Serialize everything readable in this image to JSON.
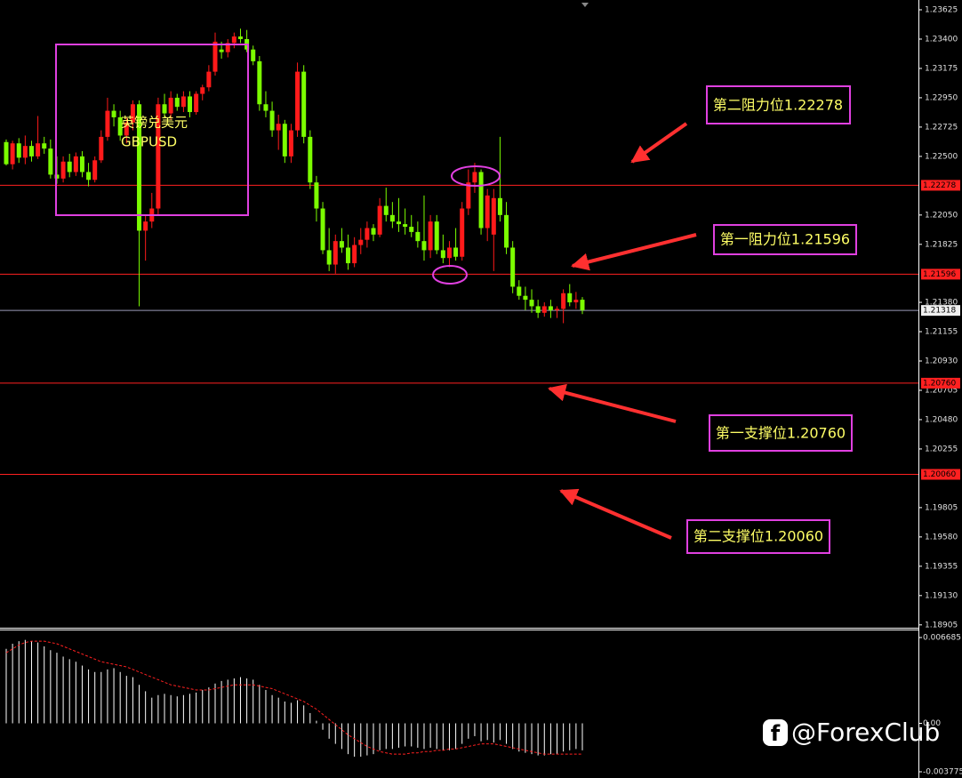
{
  "chart_data": {
    "type": "candlestick",
    "symbol_cn": "英镑兑美元",
    "symbol": "GBPUSD",
    "up_color": "#ff1a1a",
    "down_color": "#7cfc00",
    "ylim": [
      1.1889,
      1.237
    ],
    "yticks": [
      1.23625,
      {
        "value": 1.234,
        "label": "1.23400"
      },
      1.23175,
      {
        "value": 1.2295,
        "label": "1.22950"
      },
      1.22725,
      {
        "value": 1.225,
        "label": "1.22500"
      },
      {
        "value": 1.2205,
        "label": "1.22050"
      },
      1.21825,
      {
        "value": 1.2138,
        "label": "1.21380"
      },
      1.21155,
      {
        "value": 1.2093,
        "label": "1.20930"
      },
      1.20705,
      {
        "value": 1.2048,
        "label": "1.20480"
      },
      1.20255,
      1.19805,
      {
        "value": 1.1958,
        "label": "1.19580"
      },
      1.19355,
      {
        "value": 1.1913,
        "label": "1.19130"
      },
      1.18905
    ],
    "levels": [
      1.22278,
      1.21596,
      1.21318,
      {
        "value": 1.2076,
        "label": "1.20760"
      },
      {
        "value": 1.2006,
        "label": "1.20060"
      }
    ],
    "level_colors": [
      "#ff2020",
      "#ff2020",
      "#9a9ab8",
      "#ff2020",
      "#ff2020"
    ],
    "annotations": [
      "第二阻力位1.22278",
      "第一阻力位1.21596",
      "第一支撑位1.20760",
      "第二支撑位1.20060"
    ],
    "open": [
      1.2261,
      1.2244,
      1.226,
      1.2249,
      1.2258,
      1.225,
      1.226,
      1.2256,
      1.2236,
      1.2233,
      1.2246,
      1.2238,
      1.225,
      1.2238,
      1.2232,
      1.2247,
      1.2265,
      1.2285,
      1.228,
      1.2266,
      1.2276,
      1.229,
      1.2193,
      1.22,
      1.221,
      1.229,
      1.2283,
      1.2295,
      1.2288,
      1.2296,
      1.2284,
      1.2298,
      1.2303,
      1.2315,
      1.2332,
      1.233,
      1.2337,
      1.2342,
      1.234,
      1.2332,
      1.2323,
      1.229,
      1.2285,
      1.227,
      1.2275,
      1.225,
      1.227,
      1.2315,
      1.2265,
      1.223,
      1.221,
      1.2178,
      1.2167,
      1.2185,
      1.218,
      1.2168,
      1.2182,
      1.2186,
      1.2195,
      1.219,
      1.2212,
      1.2205,
      1.22,
      1.2198,
      1.2196,
      1.2192,
      1.2185,
      1.2178,
      1.22,
      1.2178,
      1.2172,
      1.218,
      1.2173,
      1.221,
      1.223,
      1.2238,
      1.2195,
      1.219,
      1.2218,
      1.2205,
      1.218,
      1.215,
      1.2143,
      1.214,
      1.2135,
      1.213,
      1.2135,
      1.2132,
      1.2133,
      1.2145,
      1.2138,
      1.214
    ],
    "high": [
      1.2263,
      1.2262,
      1.2264,
      1.2266,
      1.2262,
      1.2281,
      1.2265,
      1.2263,
      1.225,
      1.225,
      1.2252,
      1.2253,
      1.2254,
      1.2245,
      1.225,
      1.227,
      1.2295,
      1.229,
      1.2285,
      1.228,
      1.2293,
      1.2293,
      1.2205,
      1.2222,
      1.2295,
      1.2298,
      1.23,
      1.2298,
      1.23,
      1.23,
      1.23,
      1.2305,
      1.232,
      1.2345,
      1.2338,
      1.234,
      1.2345,
      1.2348,
      1.2347,
      1.2335,
      1.2327,
      1.23,
      1.2292,
      1.2282,
      1.2278,
      1.2275,
      1.2322,
      1.232,
      1.227,
      1.2235,
      1.2215,
      1.2195,
      1.219,
      1.2195,
      1.219,
      1.2188,
      1.2195,
      1.22,
      1.2198,
      1.2218,
      1.2226,
      1.2215,
      1.2218,
      1.221,
      1.2205,
      1.22,
      1.222,
      1.2205,
      1.2205,
      1.219,
      1.2185,
      1.2195,
      1.2215,
      1.224,
      1.2245,
      1.224,
      1.2225,
      1.2225,
      1.2265,
      1.2215,
      1.2185,
      1.2155,
      1.215,
      1.2148,
      1.214,
      1.2138,
      1.214,
      1.2135,
      1.2148,
      1.2152,
      1.2146,
      1.2142
    ],
    "low": [
      1.2243,
      1.224,
      1.2245,
      1.2244,
      1.2246,
      1.2248,
      1.2252,
      1.2233,
      1.2229,
      1.223,
      1.2234,
      1.2235,
      1.2234,
      1.2227,
      1.223,
      1.2245,
      1.2262,
      1.2273,
      1.2262,
      1.226,
      1.227,
      1.2135,
      1.217,
      1.2195,
      1.2205,
      1.228,
      1.2278,
      1.2285,
      1.2284,
      1.228,
      1.2282,
      1.2293,
      1.23,
      1.2312,
      1.2325,
      1.2326,
      1.2333,
      1.2337,
      1.233,
      1.232,
      1.2285,
      1.228,
      1.2265,
      1.2255,
      1.2245,
      1.2245,
      1.2265,
      1.226,
      1.2225,
      1.22,
      1.2175,
      1.2162,
      1.216,
      1.2176,
      1.2163,
      1.2165,
      1.2175,
      1.218,
      1.2185,
      1.2188,
      1.22,
      1.2195,
      1.2192,
      1.219,
      1.2188,
      1.218,
      1.217,
      1.2172,
      1.2175,
      1.2168,
      1.2165,
      1.217,
      1.217,
      1.2205,
      1.2222,
      1.219,
      1.2185,
      1.2162,
      1.22,
      1.2175,
      1.2145,
      1.214,
      1.2132,
      1.213,
      1.2126,
      1.2127,
      1.2126,
      1.2126,
      1.2122,
      1.2135,
      1.2133,
      1.2129
    ],
    "close": [
      1.2244,
      1.226,
      1.2249,
      1.2258,
      1.225,
      1.226,
      1.2256,
      1.2236,
      1.2233,
      1.2246,
      1.2238,
      1.225,
      1.2238,
      1.2232,
      1.2247,
      1.2265,
      1.2285,
      1.228,
      1.2266,
      1.2276,
      1.229,
      1.2193,
      1.22,
      1.221,
      1.229,
      1.2283,
      1.2295,
      1.2288,
      1.2296,
      1.2284,
      1.2298,
      1.2303,
      1.2315,
      1.2338,
      1.233,
      1.2337,
      1.2342,
      1.234,
      1.2332,
      1.2323,
      1.229,
      1.2285,
      1.227,
      1.2275,
      1.225,
      1.227,
      1.2315,
      1.2265,
      1.223,
      1.221,
      1.2178,
      1.2167,
      1.2185,
      1.218,
      1.2168,
      1.2182,
      1.2186,
      1.2195,
      1.219,
      1.2212,
      1.2205,
      1.22,
      1.2198,
      1.2196,
      1.2192,
      1.2185,
      1.2178,
      1.22,
      1.2178,
      1.2172,
      1.218,
      1.2173,
      1.221,
      1.223,
      1.2238,
      1.2195,
      1.222,
      1.2218,
      1.2205,
      1.218,
      1.215,
      1.2143,
      1.214,
      1.2135,
      1.213,
      1.2135,
      1.2132,
      1.2133,
      1.2145,
      1.2138,
      1.214,
      1.2132
    ],
    "macd": {
      "ylim": [
        -0.00426,
        0.00724
      ],
      "yticks": [
        0.006685,
        {
          "value": 0,
          "label": "0.00"
        },
        -0.003775
      ],
      "hist_color": "#ffffff",
      "signal_color": "#ff2020",
      "histogram": [
        0.0058,
        0.0062,
        0.0064,
        0.0065,
        0.0064,
        0.0063,
        0.006,
        0.0057,
        0.0055,
        0.0052,
        0.005,
        0.0048,
        0.0045,
        0.0042,
        0.004,
        0.004,
        0.0042,
        0.0043,
        0.004,
        0.0037,
        0.0036,
        0.003,
        0.0025,
        0.002,
        0.0022,
        0.0023,
        0.0022,
        0.0021,
        0.0022,
        0.0023,
        0.0024,
        0.0026,
        0.0028,
        0.0031,
        0.0033,
        0.0034,
        0.0035,
        0.0036,
        0.0035,
        0.0034,
        0.003,
        0.0026,
        0.0022,
        0.002,
        0.0017,
        0.0016,
        0.0018,
        0.0014,
        0.0008,
        0.0002,
        -0.0005,
        -0.0012,
        -0.0016,
        -0.002,
        -0.0024,
        -0.0026,
        -0.0026,
        -0.0025,
        -0.0024,
        -0.0021,
        -0.002,
        -0.002,
        -0.0019,
        -0.0018,
        -0.0018,
        -0.0019,
        -0.002,
        -0.0019,
        -0.002,
        -0.0021,
        -0.0021,
        -0.002,
        -0.0016,
        -0.0012,
        -0.001,
        -0.0014,
        -0.0013,
        -0.0015,
        -0.0013,
        -0.0016,
        -0.002,
        -0.0022,
        -0.0023,
        -0.0024,
        -0.0025,
        -0.0025,
        -0.0024,
        -0.0024,
        -0.0022,
        -0.0021,
        -0.002,
        -0.0021
      ],
      "signal": [
        0.0055,
        0.0058,
        0.0061,
        0.0063,
        0.0064,
        0.0064,
        0.0064,
        0.0063,
        0.0062,
        0.006,
        0.0058,
        0.0056,
        0.0054,
        0.0052,
        0.005,
        0.0048,
        0.0047,
        0.0046,
        0.0045,
        0.0044,
        0.0042,
        0.004,
        0.0038,
        0.0036,
        0.0034,
        0.0032,
        0.003,
        0.0029,
        0.0028,
        0.0027,
        0.0026,
        0.0026,
        0.0026,
        0.0027,
        0.0028,
        0.0029,
        0.003,
        0.003,
        0.003,
        0.003,
        0.0029,
        0.0028,
        0.0027,
        0.0025,
        0.0023,
        0.0021,
        0.0019,
        0.0017,
        0.0014,
        0.0011,
        0.0007,
        0.0003,
        -0.0001,
        -0.0005,
        -0.0009,
        -0.0012,
        -0.0015,
        -0.0018,
        -0.002,
        -0.0022,
        -0.0023,
        -0.0024,
        -0.0024,
        -0.0024,
        -0.0023,
        -0.0023,
        -0.0022,
        -0.0022,
        -0.0021,
        -0.0021,
        -0.002,
        -0.002,
        -0.0019,
        -0.0018,
        -0.0017,
        -0.0016,
        -0.0016,
        -0.0016,
        -0.0017,
        -0.0018,
        -0.0019,
        -0.002,
        -0.0021,
        -0.0022,
        -0.0023,
        -0.0024,
        -0.0024,
        -0.0024,
        -0.0024,
        -0.0024,
        -0.0024,
        -0.0024
      ]
    }
  },
  "watermark": "@ForexClub"
}
